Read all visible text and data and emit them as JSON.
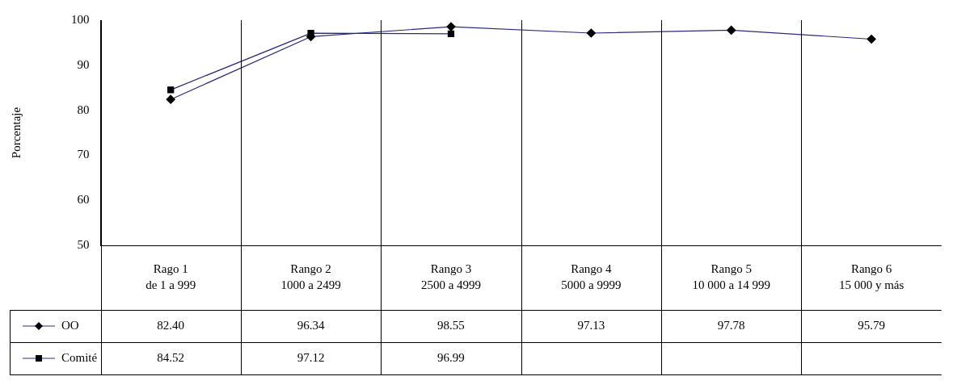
{
  "chart_data": {
    "type": "line",
    "ylabel": "Porcentaje",
    "categories": [
      "Rago 1\nde 1 a 999",
      "Rango 2\n1000 a 2499",
      "Rango 3\n2500 a 4999",
      "Rango 4\n5000 a 9999",
      "Rango 5\n10 000 a 14 999",
      "Rango 6\n15 000 y más"
    ],
    "series": [
      {
        "name": "OO",
        "color": "#2a2a7a",
        "marker": "diamond",
        "values": [
          82.4,
          96.34,
          98.55,
          97.13,
          97.78,
          95.79
        ],
        "value_labels": [
          "82.40",
          "96.34",
          "98.55",
          "97.13",
          "97.78",
          "95.79"
        ]
      },
      {
        "name": "Comité",
        "color": "#2a2a7a",
        "marker": "square",
        "values": [
          84.52,
          97.12,
          96.99,
          null,
          null,
          null
        ],
        "value_labels": [
          "84.52",
          "97.12",
          "96.99",
          null,
          null,
          null
        ]
      }
    ],
    "ylim": [
      50,
      100
    ],
    "yticks": [
      50,
      60,
      70,
      80,
      90,
      100
    ],
    "grid": "x",
    "legend": "bottom left",
    "data_labels": true
  }
}
